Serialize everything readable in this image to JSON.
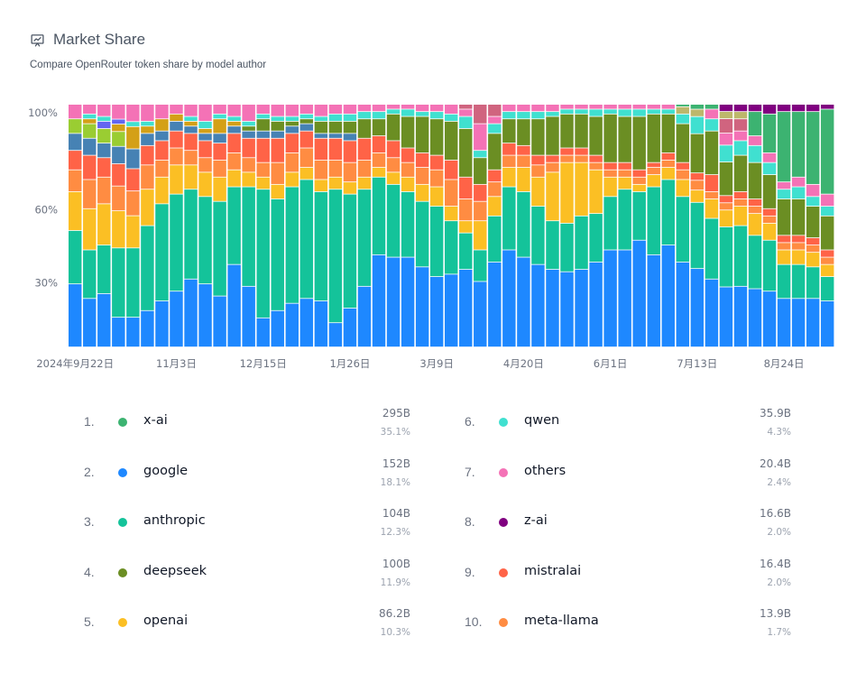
{
  "header": {
    "title": "Market Share",
    "subtitle": "Compare OpenRouter token share by model author",
    "icon": "chart-presentation-icon"
  },
  "colors": {
    "x-ai": "#3cb371",
    "google": "#1e88ff",
    "anthropic": "#14c39a",
    "deepseek": "#6b8e23",
    "openai": "#fbbf24",
    "qwen": "#40e0d0",
    "others": "#f472b6",
    "z-ai": "#800080",
    "mistralai": "#ff6347",
    "meta-llama": "#ff8c42",
    "cohere": "#4682b4",
    "gryphe": "#9acd32",
    "nousresearch": "#d4a017",
    "amazon": "#6366f1",
    "moonshotai": "#d0647f",
    "baidu": "#bdb76b"
  },
  "legend": [
    {
      "rank": "1.",
      "name": "x-ai",
      "tokens": "295B",
      "pct": "35.1%"
    },
    {
      "rank": "2.",
      "name": "google",
      "tokens": "152B",
      "pct": "18.1%"
    },
    {
      "rank": "3.",
      "name": "anthropic",
      "tokens": "104B",
      "pct": "12.3%"
    },
    {
      "rank": "4.",
      "name": "deepseek",
      "tokens": "100B",
      "pct": "11.9%"
    },
    {
      "rank": "5.",
      "name": "openai",
      "tokens": "86.2B",
      "pct": "10.3%"
    },
    {
      "rank": "6.",
      "name": "qwen",
      "tokens": "35.9B",
      "pct": "4.3%"
    },
    {
      "rank": "7.",
      "name": "others",
      "tokens": "20.4B",
      "pct": "2.4%"
    },
    {
      "rank": "8.",
      "name": "z-ai",
      "tokens": "16.6B",
      "pct": "2.0%"
    },
    {
      "rank": "9.",
      "name": "mistralai",
      "tokens": "16.4B",
      "pct": "2.0%"
    },
    {
      "rank": "10.",
      "name": "meta-llama",
      "tokens": "13.9B",
      "pct": "1.7%"
    }
  ],
  "chart_data": {
    "type": "bar",
    "stacked": true,
    "title": "Market Share",
    "subtitle": "Compare OpenRouter token share by model author",
    "ylim": [
      0,
      100
    ],
    "yticks": [
      30,
      60,
      100
    ],
    "ytick_labels": [
      "30%",
      "60%",
      "100%"
    ],
    "xtick_labels": [
      {
        "index": 0,
        "label": "2024年9月22日"
      },
      {
        "index": 7,
        "label": "11月3日"
      },
      {
        "index": 13,
        "label": "12月15日"
      },
      {
        "index": 19,
        "label": "1月26日"
      },
      {
        "index": 25,
        "label": "3月9日"
      },
      {
        "index": 31,
        "label": "4月20日"
      },
      {
        "index": 37,
        "label": "6月1日"
      },
      {
        "index": 43,
        "label": "7月13日"
      },
      {
        "index": 49,
        "label": "8月24日"
      }
    ],
    "series_order": [
      "google",
      "anthropic",
      "openai",
      "meta-llama",
      "mistralai",
      "cohere",
      "gryphe",
      "nousresearch",
      "amazon",
      "deepseek",
      "qwen",
      "others",
      "moonshotai",
      "baidu",
      "x-ai",
      "z-ai"
    ],
    "weeks": [
      {
        "google": 26,
        "anthropic": 22,
        "openai": 16,
        "meta-llama": 9,
        "mistralai": 8,
        "cohere": 7,
        "gryphe": 6,
        "others": 6
      },
      {
        "google": 20,
        "anthropic": 20,
        "openai": 17,
        "meta-llama": 12,
        "mistralai": 10,
        "cohere": 7,
        "gryphe": 6,
        "others": 4,
        "qwen": 2,
        "nousresearch": 2
      },
      {
        "google": 22,
        "anthropic": 20,
        "openai": 17,
        "meta-llama": 11,
        "mistralai": 8,
        "cohere": 6,
        "gryphe": 6,
        "others": 5,
        "qwen": 2,
        "amazon": 3
      },
      {
        "google": 12,
        "anthropic": 28,
        "openai": 15,
        "meta-llama": 10,
        "mistralai": 9,
        "cohere": 7,
        "gryphe": 6,
        "others": 6,
        "amazon": 2,
        "nousresearch": 3
      },
      {
        "google": 12,
        "anthropic": 28,
        "openai": 13,
        "meta-llama": 10,
        "mistralai": 9,
        "cohere": 8,
        "others": 7,
        "nousresearch": 9,
        "qwen": 2
      },
      {
        "google": 15,
        "anthropic": 35,
        "openai": 15,
        "meta-llama": 10,
        "mistralai": 8,
        "cohere": 5,
        "others": 7,
        "qwen": 2,
        "nousresearch": 3
      },
      {
        "google": 19,
        "anthropic": 40,
        "openai": 11,
        "meta-llama": 7,
        "mistralai": 8,
        "cohere": 4,
        "others": 6,
        "nousresearch": 5
      },
      {
        "google": 23,
        "anthropic": 40,
        "openai": 12,
        "meta-llama": 7,
        "mistralai": 7,
        "cohere": 4,
        "others": 4,
        "nousresearch": 3
      },
      {
        "google": 28,
        "anthropic": 37,
        "openai": 10,
        "meta-llama": 6,
        "mistralai": 7,
        "cohere": 3,
        "others": 5,
        "qwen": 2,
        "nousresearch": 2
      },
      {
        "google": 26,
        "anthropic": 36,
        "openai": 10,
        "meta-llama": 6,
        "mistralai": 7,
        "cohere": 3,
        "others": 7,
        "qwen": 3,
        "nousresearch": 2
      },
      {
        "google": 21,
        "anthropic": 39,
        "openai": 10,
        "meta-llama": 7,
        "mistralai": 7,
        "cohere": 4,
        "others": 4,
        "nousresearch": 6,
        "qwen": 2
      },
      {
        "google": 34,
        "anthropic": 32,
        "openai": 7,
        "meta-llama": 7,
        "mistralai": 8,
        "cohere": 3,
        "others": 5,
        "qwen": 2,
        "nousresearch": 2
      },
      {
        "google": 25,
        "anthropic": 41,
        "openai": 6,
        "meta-llama": 6,
        "mistralai": 8,
        "cohere": 3,
        "others": 7,
        "qwen": 2,
        "deepseek": 2
      },
      {
        "google": 12,
        "anthropic": 53,
        "openai": 5,
        "meta-llama": 6,
        "mistralai": 10,
        "cohere": 3,
        "others": 4,
        "qwen": 2,
        "deepseek": 5
      },
      {
        "google": 15,
        "anthropic": 46,
        "openai": 6,
        "meta-llama": 9,
        "mistralai": 10,
        "cohere": 3,
        "others": 5,
        "qwen": 2,
        "deepseek": 4
      },
      {
        "google": 18,
        "anthropic": 48,
        "openai": 6,
        "meta-llama": 8,
        "mistralai": 8,
        "cohere": 3,
        "others": 5,
        "qwen": 2,
        "deepseek": 2
      },
      {
        "google": 20,
        "anthropic": 49,
        "openai": 5,
        "meta-llama": 8,
        "mistralai": 7,
        "cohere": 3,
        "others": 4,
        "qwen": 2,
        "deepseek": 2
      },
      {
        "google": 19,
        "anthropic": 45,
        "openai": 5,
        "meta-llama": 8,
        "mistralai": 9,
        "cohere": 2,
        "others": 5,
        "qwen": 2,
        "deepseek": 5
      },
      {
        "google": 10,
        "anthropic": 55,
        "openai": 5,
        "meta-llama": 7,
        "mistralai": 9,
        "cohere": 2,
        "others": 4,
        "qwen": 3,
        "deepseek": 5
      },
      {
        "google": 16,
        "anthropic": 47,
        "openai": 5,
        "meta-llama": 8,
        "mistralai": 9,
        "cohere": 3,
        "others": 4,
        "qwen": 3,
        "deepseek": 5
      },
      {
        "google": 25,
        "anthropic": 40,
        "openai": 5,
        "meta-llama": 7,
        "mistralai": 9,
        "others": 3,
        "qwen": 3,
        "deepseek": 8
      },
      {
        "google": 38,
        "anthropic": 32,
        "openai": 4,
        "meta-llama": 6,
        "mistralai": 7,
        "others": 3,
        "qwen": 3,
        "deepseek": 7
      },
      {
        "google": 37,
        "anthropic": 30,
        "openai": 5,
        "meta-llama": 6,
        "mistralai": 7,
        "others": 2,
        "qwen": 2,
        "deepseek": 11
      },
      {
        "google": 37,
        "anthropic": 27,
        "openai": 6,
        "meta-llama": 6,
        "mistralai": 6,
        "others": 2,
        "qwen": 3,
        "deepseek": 13
      },
      {
        "google": 33,
        "anthropic": 27,
        "openai": 7,
        "meta-llama": 7,
        "mistralai": 6,
        "others": 3,
        "qwen": 2,
        "deepseek": 15
      },
      {
        "google": 29,
        "anthropic": 29,
        "openai": 8,
        "meta-llama": 7,
        "mistralai": 6,
        "others": 3,
        "qwen": 3,
        "deepseek": 15
      },
      {
        "google": 30,
        "anthropic": 22,
        "openai": 6,
        "meta-llama": 11,
        "mistralai": 8,
        "others": 4,
        "qwen": 3,
        "deepseek": 16
      },
      {
        "google": 32,
        "anthropic": 15,
        "openai": 5,
        "meta-llama": 9,
        "mistralai": 9,
        "others": 3,
        "qwen": 5,
        "deepseek": 20,
        "moonshotai": 2
      },
      {
        "google": 27,
        "anthropic": 13,
        "openai": 12,
        "meta-llama": 8,
        "mistralai": 7,
        "others": 11,
        "qwen": 3,
        "deepseek": 11,
        "moonshotai": 8
      },
      {
        "google": 35,
        "anthropic": 19,
        "openai": 8,
        "meta-llama": 6,
        "mistralai": 5,
        "others": 3,
        "qwen": 4,
        "deepseek": 15,
        "moonshotai": 5
      },
      {
        "google": 40,
        "anthropic": 26,
        "openai": 8,
        "meta-llama": 5,
        "mistralai": 5,
        "others": 3,
        "qwen": 3,
        "deepseek": 10
      },
      {
        "google": 37,
        "anthropic": 27,
        "openai": 10,
        "meta-llama": 5,
        "mistralai": 4,
        "others": 3,
        "qwen": 3,
        "deepseek": 11
      },
      {
        "google": 34,
        "anthropic": 24,
        "openai": 12,
        "meta-llama": 5,
        "mistralai": 4,
        "others": 3,
        "qwen": 3,
        "deepseek": 15
      },
      {
        "google": 32,
        "anthropic": 20,
        "openai": 20,
        "meta-llama": 4,
        "mistralai": 3,
        "others": 3,
        "qwen": 2,
        "deepseek": 16
      },
      {
        "google": 31,
        "anthropic": 20,
        "openai": 25,
        "meta-llama": 3,
        "mistralai": 3,
        "others": 2,
        "qwen": 2,
        "deepseek": 14
      },
      {
        "google": 32,
        "anthropic": 22,
        "openai": 22,
        "meta-llama": 3,
        "mistralai": 3,
        "others": 2,
        "qwen": 2,
        "deepseek": 14
      },
      {
        "google": 35,
        "anthropic": 20,
        "openai": 18,
        "meta-llama": 3,
        "mistralai": 3,
        "others": 2,
        "qwen": 3,
        "deepseek": 16
      },
      {
        "google": 40,
        "anthropic": 22,
        "openai": 8,
        "meta-llama": 3,
        "mistralai": 3,
        "others": 2,
        "qwen": 2,
        "deepseek": 20
      },
      {
        "google": 40,
        "anthropic": 25,
        "openai": 5,
        "meta-llama": 3,
        "mistralai": 3,
        "others": 2,
        "qwen": 3,
        "deepseek": 19
      },
      {
        "google": 44,
        "anthropic": 20,
        "openai": 3,
        "meta-llama": 3,
        "mistralai": 3,
        "others": 2,
        "qwen": 3,
        "deepseek": 22
      },
      {
        "google": 38,
        "anthropic": 28,
        "openai": 5,
        "meta-llama": 3,
        "mistralai": 2,
        "others": 2,
        "qwen": 2,
        "deepseek": 20
      },
      {
        "google": 42,
        "anthropic": 27,
        "openai": 5,
        "meta-llama": 3,
        "mistralai": 3,
        "others": 2,
        "qwen": 2,
        "deepseek": 16
      },
      {
        "google": 35,
        "anthropic": 27,
        "openai": 7,
        "meta-llama": 4,
        "mistralai": 3,
        "qwen": 4,
        "deepseek": 16,
        "baidu": 3,
        "x-ai": 1
      },
      {
        "google": 32,
        "anthropic": 27,
        "openai": 5,
        "meta-llama": 4,
        "mistralai": 3,
        "qwen": 7,
        "deepseek": 16,
        "baidu": 3,
        "x-ai": 2
      },
      {
        "google": 28,
        "anthropic": 25,
        "openai": 8,
        "meta-llama": 3,
        "mistralai": 7,
        "qwen": 5,
        "deepseek": 18,
        "others": 4,
        "x-ai": 2
      },
      {
        "google": 25,
        "anthropic": 25,
        "openai": 7,
        "meta-llama": 3,
        "mistralai": 3,
        "qwen": 7,
        "others": 5,
        "deepseek": 14,
        "moonshotai": 6,
        "baidu": 3,
        "z-ai": 3
      },
      {
        "google": 25,
        "anthropic": 25,
        "openai": 8,
        "meta-llama": 3,
        "mistralai": 3,
        "qwen": 6,
        "others": 4,
        "deepseek": 15,
        "moonshotai": 5,
        "baidu": 3,
        "z-ai": 3
      },
      {
        "google": 24,
        "anthropic": 22,
        "openai": 9,
        "meta-llama": 3,
        "mistralai": 3,
        "qwen": 7,
        "others": 4,
        "deepseek": 15,
        "x-ai": 10,
        "z-ai": 3
      },
      {
        "google": 23,
        "anthropic": 21,
        "openai": 7,
        "meta-llama": 3,
        "mistralai": 3,
        "qwen": 5,
        "others": 4,
        "deepseek": 14,
        "x-ai": 16,
        "z-ai": 4
      },
      {
        "google": 20,
        "anthropic": 14,
        "openai": 6,
        "meta-llama": 3,
        "mistralai": 3,
        "qwen": 4,
        "others": 3,
        "deepseek": 15,
        "x-ai": 29,
        "z-ai": 3
      },
      {
        "google": 20,
        "anthropic": 14,
        "openai": 6,
        "meta-llama": 3,
        "mistralai": 3,
        "qwen": 5,
        "others": 4,
        "deepseek": 15,
        "x-ai": 27,
        "z-ai": 3
      },
      {
        "google": 20,
        "anthropic": 13,
        "openai": 6,
        "meta-llama": 3,
        "mistralai": 3,
        "qwen": 4,
        "others": 5,
        "deepseek": 13,
        "x-ai": 30,
        "z-ai": 3
      },
      {
        "google": 19,
        "anthropic": 10,
        "openai": 5,
        "meta-llama": 3,
        "mistralai": 3,
        "qwen": 4,
        "others": 5,
        "deepseek": 14,
        "x-ai": 35,
        "z-ai": 2
      }
    ]
  }
}
